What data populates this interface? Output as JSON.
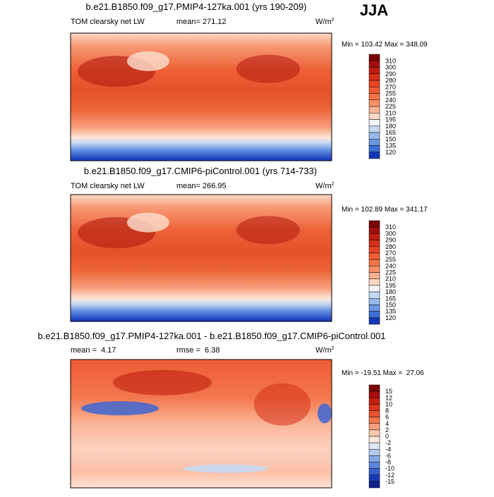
{
  "season": "JJA",
  "panels": [
    {
      "title": "b.e21.B1850.f09_g17.PMIP4-127ka.001 (yrs 190-209)",
      "variable": "TOM clearsky net LW",
      "stats": [
        "mean= 271.12"
      ],
      "units": "W/m",
      "units_sup": "2",
      "min_max": "Min = 103.42 Max = 348.09",
      "levels": [
        310,
        300,
        290,
        280,
        270,
        255,
        240,
        225,
        210,
        195,
        180,
        165,
        150,
        135,
        120
      ],
      "colors": [
        "#7a0403",
        "#a50f0f",
        "#c01d10",
        "#d83018",
        "#e84424",
        "#f15a33",
        "#f57447",
        "#f99068",
        "#fbb294",
        "#fdd8c4",
        "#f4f4fb",
        "#c6d9f3",
        "#98bbeb",
        "#6a98e2",
        "#3c6fd6",
        "#1438b8"
      ]
    },
    {
      "title": "b.e21.B1850.f09_g17.CMIP6-piControl.001 (yrs 714-733)",
      "variable": "TOM clearsky net LW",
      "stats": [
        "mean= 266.95"
      ],
      "units": "W/m",
      "units_sup": "2",
      "min_max": "Min = 102.89 Max = 341.17",
      "levels": [
        310,
        300,
        290,
        280,
        270,
        255,
        240,
        225,
        210,
        195,
        180,
        165,
        150,
        135,
        120
      ],
      "colors": [
        "#7a0403",
        "#a50f0f",
        "#c01d10",
        "#d83018",
        "#e84424",
        "#f15a33",
        "#f57447",
        "#f99068",
        "#fbb294",
        "#fdd8c4",
        "#f4f4fb",
        "#c6d9f3",
        "#98bbeb",
        "#6a98e2",
        "#3c6fd6",
        "#1438b8"
      ]
    },
    {
      "title": "b.e21.B1850.f09_g17.PMIP4-127ka.001 - b.e21.B1850.f09_g17.CMIP6-piControl.001",
      "variable": "",
      "stats": [
        "mean =  4.17",
        "rmse =  6.38"
      ],
      "units": "W/m",
      "units_sup": "2",
      "min_max": "Min = -19.51 Max =  27.06",
      "levels": [
        15,
        12,
        10,
        8,
        6,
        4,
        2,
        0,
        -2,
        -4,
        -6,
        -8,
        -10,
        -12,
        -15
      ],
      "colors": [
        "#7a0403",
        "#a50f0f",
        "#c41f10",
        "#dc3519",
        "#ec5230",
        "#f47650",
        "#f99d7c",
        "#fcc6ae",
        "#fde8dc",
        "#dde8f7",
        "#b3cbef",
        "#85a9e6",
        "#5a86dc",
        "#3460cf",
        "#1a3ab8",
        "#10208f"
      ]
    }
  ]
}
